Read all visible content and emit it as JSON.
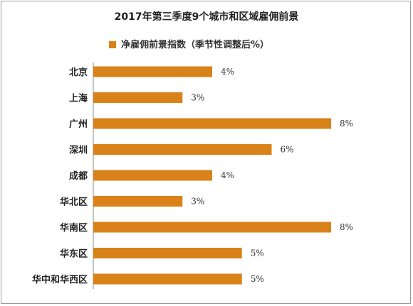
{
  "chart_data": {
    "type": "bar",
    "orientation": "horizontal",
    "title": "2017年第三季度9个城市和区域雇佣前景",
    "categories": [
      "北京",
      "上海",
      "广州",
      "深圳",
      "成都",
      "华北区",
      "华南区",
      "华东区",
      "华中和华西区"
    ],
    "series": [
      {
        "name": "净雇佣前景指数（季节性调整后%）",
        "values": [
          4,
          3,
          8,
          6,
          4,
          3,
          8,
          5,
          5
        ],
        "value_labels": [
          "4%",
          "3%",
          "8%",
          "6%",
          "4%",
          "3%",
          "8%",
          "5%",
          "5%"
        ],
        "color": "#d98219"
      }
    ],
    "xlim": [
      0,
      8
    ],
    "grid": false,
    "legend_position": "top-center"
  }
}
